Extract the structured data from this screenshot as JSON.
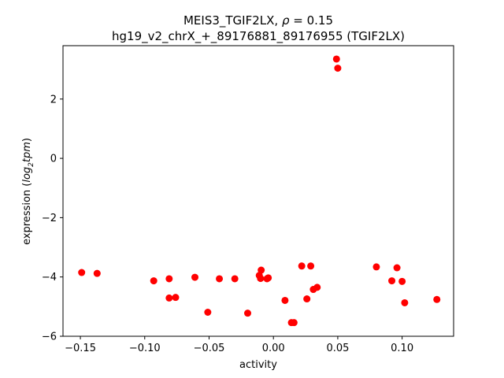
{
  "chart_data": {
    "type": "scatter",
    "title_line1_prefix": "MEIS3_TGIF2LX, ",
    "title_rho_symbol": "ρ",
    "title_rho_value": " = 0.15",
    "title_line2": "hg19_v2_chrX_+_89176881_89176955 (TGIF2LX)",
    "xlabel": "activity",
    "ylabel_prefix": "expression (",
    "ylabel_log": "log",
    "ylabel_sub": "2",
    "ylabel_tpm": "tpm",
    "ylabel_suffix": ")",
    "xlim": [
      -0.1635,
      0.14
    ],
    "ylim": [
      -6.0,
      3.8
    ],
    "xticks": [
      -0.15,
      -0.1,
      -0.05,
      0.0,
      0.05,
      0.1
    ],
    "xtick_labels": [
      "−0.15",
      "−0.10",
      "−0.05",
      "0.00",
      "0.05",
      "0.10"
    ],
    "yticks": [
      -6,
      -4,
      -2,
      0,
      2
    ],
    "ytick_labels": [
      "−6",
      "−4",
      "−2",
      "0",
      "2"
    ],
    "marker_color": "#ff0000",
    "points": [
      {
        "x": -0.149,
        "y": -3.85
      },
      {
        "x": -0.137,
        "y": -3.88
      },
      {
        "x": -0.093,
        "y": -4.13
      },
      {
        "x": -0.081,
        "y": -4.06
      },
      {
        "x": -0.081,
        "y": -4.71
      },
      {
        "x": -0.076,
        "y": -4.69
      },
      {
        "x": -0.061,
        "y": -4.01
      },
      {
        "x": -0.051,
        "y": -5.19
      },
      {
        "x": -0.042,
        "y": -4.06
      },
      {
        "x": -0.03,
        "y": -4.06
      },
      {
        "x": -0.02,
        "y": -5.22
      },
      {
        "x": -0.011,
        "y": -3.95
      },
      {
        "x": -0.01,
        "y": -4.05
      },
      {
        "x": -0.0095,
        "y": -3.77
      },
      {
        "x": -0.005,
        "y": -4.06
      },
      {
        "x": -0.004,
        "y": -4.03
      },
      {
        "x": 0.009,
        "y": -4.79
      },
      {
        "x": 0.014,
        "y": -5.54
      },
      {
        "x": 0.016,
        "y": -5.54
      },
      {
        "x": 0.022,
        "y": -3.63
      },
      {
        "x": 0.026,
        "y": -4.74
      },
      {
        "x": 0.029,
        "y": -3.63
      },
      {
        "x": 0.031,
        "y": -4.42
      },
      {
        "x": 0.034,
        "y": -4.35
      },
      {
        "x": 0.049,
        "y": 3.35
      },
      {
        "x": 0.05,
        "y": 3.04
      },
      {
        "x": 0.08,
        "y": -3.66
      },
      {
        "x": 0.092,
        "y": -4.13
      },
      {
        "x": 0.096,
        "y": -3.69
      },
      {
        "x": 0.1,
        "y": -4.15
      },
      {
        "x": 0.102,
        "y": -4.87
      },
      {
        "x": 0.127,
        "y": -4.76
      }
    ]
  }
}
